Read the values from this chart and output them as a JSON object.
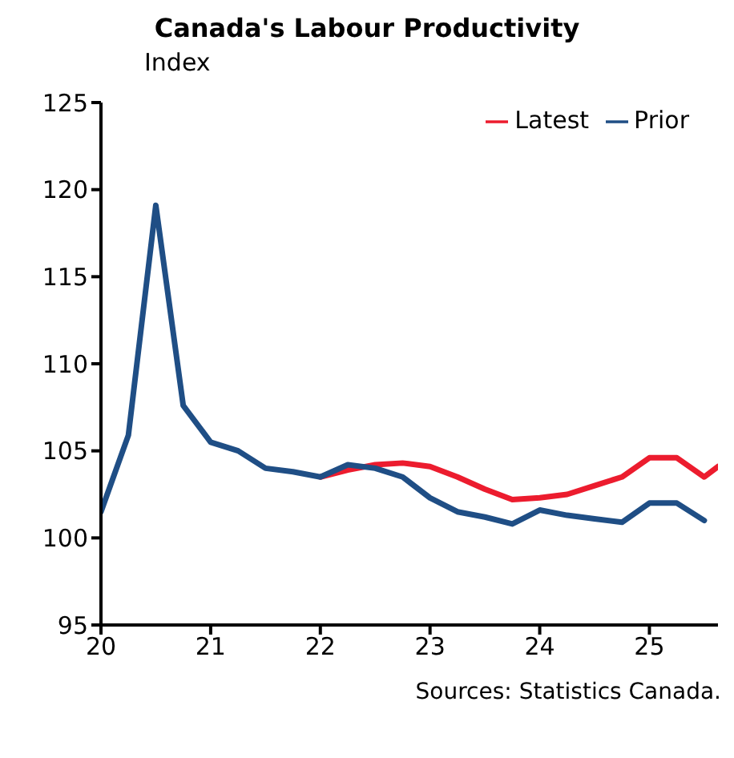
{
  "chart_data": {
    "type": "line",
    "title": "Canada's Labour Productivity",
    "ylabel": "Index",
    "xlim": [
      20,
      25.625
    ],
    "xticks": [
      20,
      21,
      22,
      23,
      24,
      25
    ],
    "ylim": [
      95,
      125
    ],
    "yticks": [
      95,
      100,
      105,
      110,
      115,
      120,
      125
    ],
    "legend": "top right",
    "marker": "none",
    "line_style": "solid",
    "annotations": [
      "Sources: Statistics Canada."
    ],
    "series": [
      {
        "name": "Latest",
        "color": "#ec1c2e",
        "x": [
          22,
          22.25,
          22.5,
          22.75,
          23,
          23.25,
          23.5,
          23.75,
          24,
          24.25,
          24.5,
          24.75,
          25,
          25.25,
          25.5,
          25.625
        ],
        "values": [
          103.5,
          103.9,
          104.2,
          104.3,
          104.1,
          103.5,
          102.8,
          102.2,
          102.3,
          102.5,
          103.0,
          103.5,
          104.6,
          104.6,
          103.5,
          104.1
        ]
      },
      {
        "name": "Prior",
        "color": "#1f4e85",
        "x": [
          20,
          20.25,
          20.5,
          20.75,
          21,
          21.25,
          21.5,
          21.75,
          22,
          22.25,
          22.5,
          22.75,
          23,
          23.25,
          23.5,
          23.75,
          24,
          24.25,
          24.5,
          24.75,
          25,
          25.25,
          25.5
        ],
        "values": [
          101.5,
          105.9,
          119.1,
          107.6,
          105.5,
          105.0,
          104.0,
          103.8,
          103.5,
          104.2,
          104.0,
          103.5,
          102.3,
          101.5,
          101.2,
          100.8,
          101.6,
          101.3,
          101.1,
          100.9,
          102.0,
          102.0,
          101.0
        ]
      }
    ]
  }
}
